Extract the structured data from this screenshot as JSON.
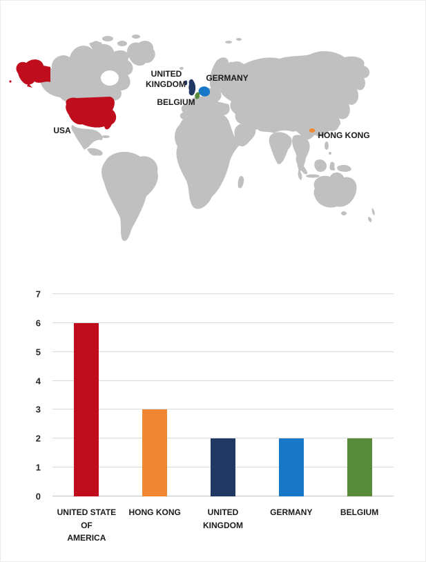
{
  "page": {
    "background": "#ffffff",
    "border_color": "#ececec"
  },
  "map": {
    "type": "choropleth-world-map",
    "land_color": "#c0c0c0",
    "ocean_color": "#ffffff",
    "labels": {
      "usa": "USA",
      "united_kingdom_line1": "UNITED",
      "united_kingdom_line2": "KINGDOM",
      "germany": "GERMANY",
      "belgium": "BELGIUM",
      "hong_kong": "HONG KONG"
    },
    "highlights": [
      {
        "name": "USA",
        "color": "#c00d1d"
      },
      {
        "name": "United Kingdom",
        "color": "#1f3864"
      },
      {
        "name": "Germany",
        "color": "#1877c6"
      },
      {
        "name": "Belgium",
        "color": "#588b39"
      },
      {
        "name": "Hong Kong",
        "color": "#ef8733"
      }
    ]
  },
  "chart_data": {
    "type": "bar",
    "title": "",
    "xlabel": "",
    "ylabel": "",
    "categories": [
      "UNITED STATE OF AMERICA",
      "HONG KONG",
      "UNITED KINGDOM",
      "GERMANY",
      "BELGIUM"
    ],
    "category_lines": [
      [
        "UNITED STATE OF",
        "AMERICA"
      ],
      [
        "HONG KONG"
      ],
      [
        "UNITED",
        "KINGDOM"
      ],
      [
        "GERMANY"
      ],
      [
        "BELGIUM"
      ]
    ],
    "values": [
      6,
      3,
      2,
      2,
      2
    ],
    "colors": [
      "#c00d1d",
      "#ef8733",
      "#1f3864",
      "#1877c6",
      "#588b39"
    ],
    "ylim": [
      0,
      7
    ],
    "yticks": [
      0,
      1,
      2,
      3,
      4,
      5,
      6,
      7
    ],
    "grid": true,
    "legend": false
  }
}
